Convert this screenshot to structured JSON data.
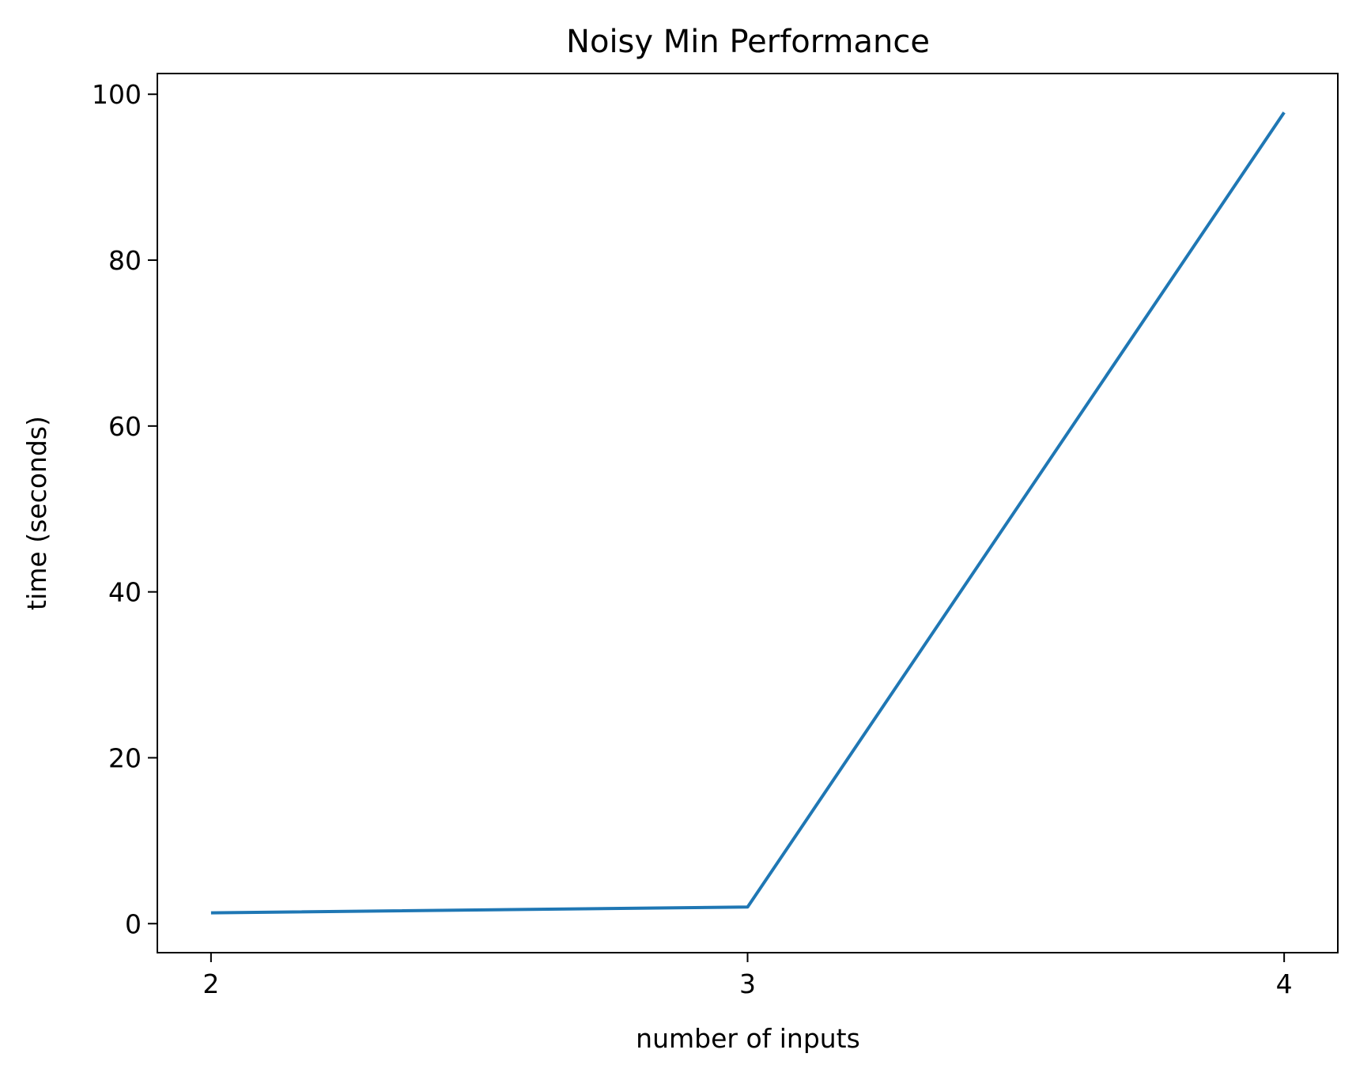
{
  "chart_data": {
    "type": "line",
    "title": "Noisy Min Performance",
    "xlabel": "number of inputs",
    "ylabel": "time (seconds)",
    "x": [
      2,
      3,
      4
    ],
    "series": [
      {
        "values": [
          1.3,
          2.0,
          97.8
        ],
        "color": "#1f77b4"
      }
    ],
    "xticks": [
      2,
      3,
      4
    ],
    "xtick_labels": [
      "2",
      "3",
      "4"
    ],
    "yticks": [
      0,
      20,
      40,
      60,
      80,
      100
    ],
    "ytick_labels": [
      "0",
      "20",
      "40",
      "60",
      "80",
      "100"
    ],
    "xlim": [
      1.9,
      4.1
    ],
    "ylim": [
      -3.5,
      102.5
    ],
    "grid": false,
    "legend": "none"
  }
}
